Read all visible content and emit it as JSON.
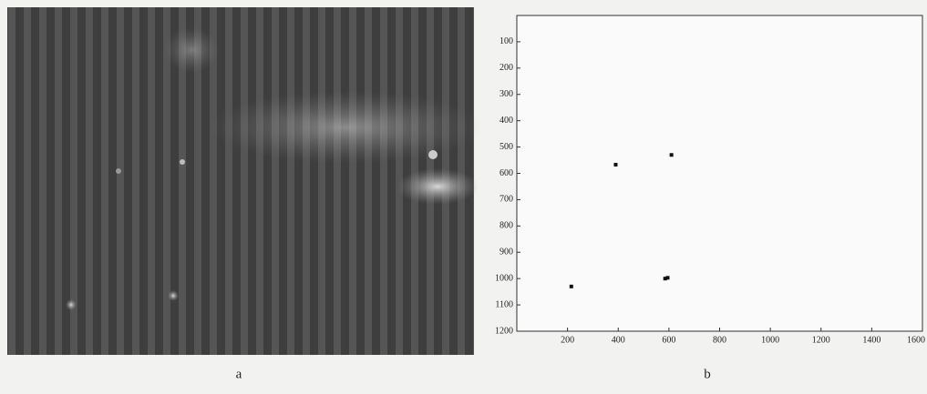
{
  "panel_labels": [
    "a",
    "b"
  ],
  "chart_data": {
    "type": "scatter",
    "color": "#111111",
    "x": [
      390,
      610,
      215,
      585,
      595
    ],
    "values": [
      567,
      530,
      1030,
      1000,
      997
    ],
    "xlim": [
      0,
      1600
    ],
    "ylim": [
      0,
      1200
    ],
    "y_inverted": true,
    "xticks": [
      200,
      400,
      600,
      800,
      1000,
      1200,
      1400,
      1600
    ],
    "yticks": [
      100,
      200,
      300,
      400,
      500,
      600,
      700,
      800,
      900,
      1000,
      1100,
      1200
    ]
  }
}
